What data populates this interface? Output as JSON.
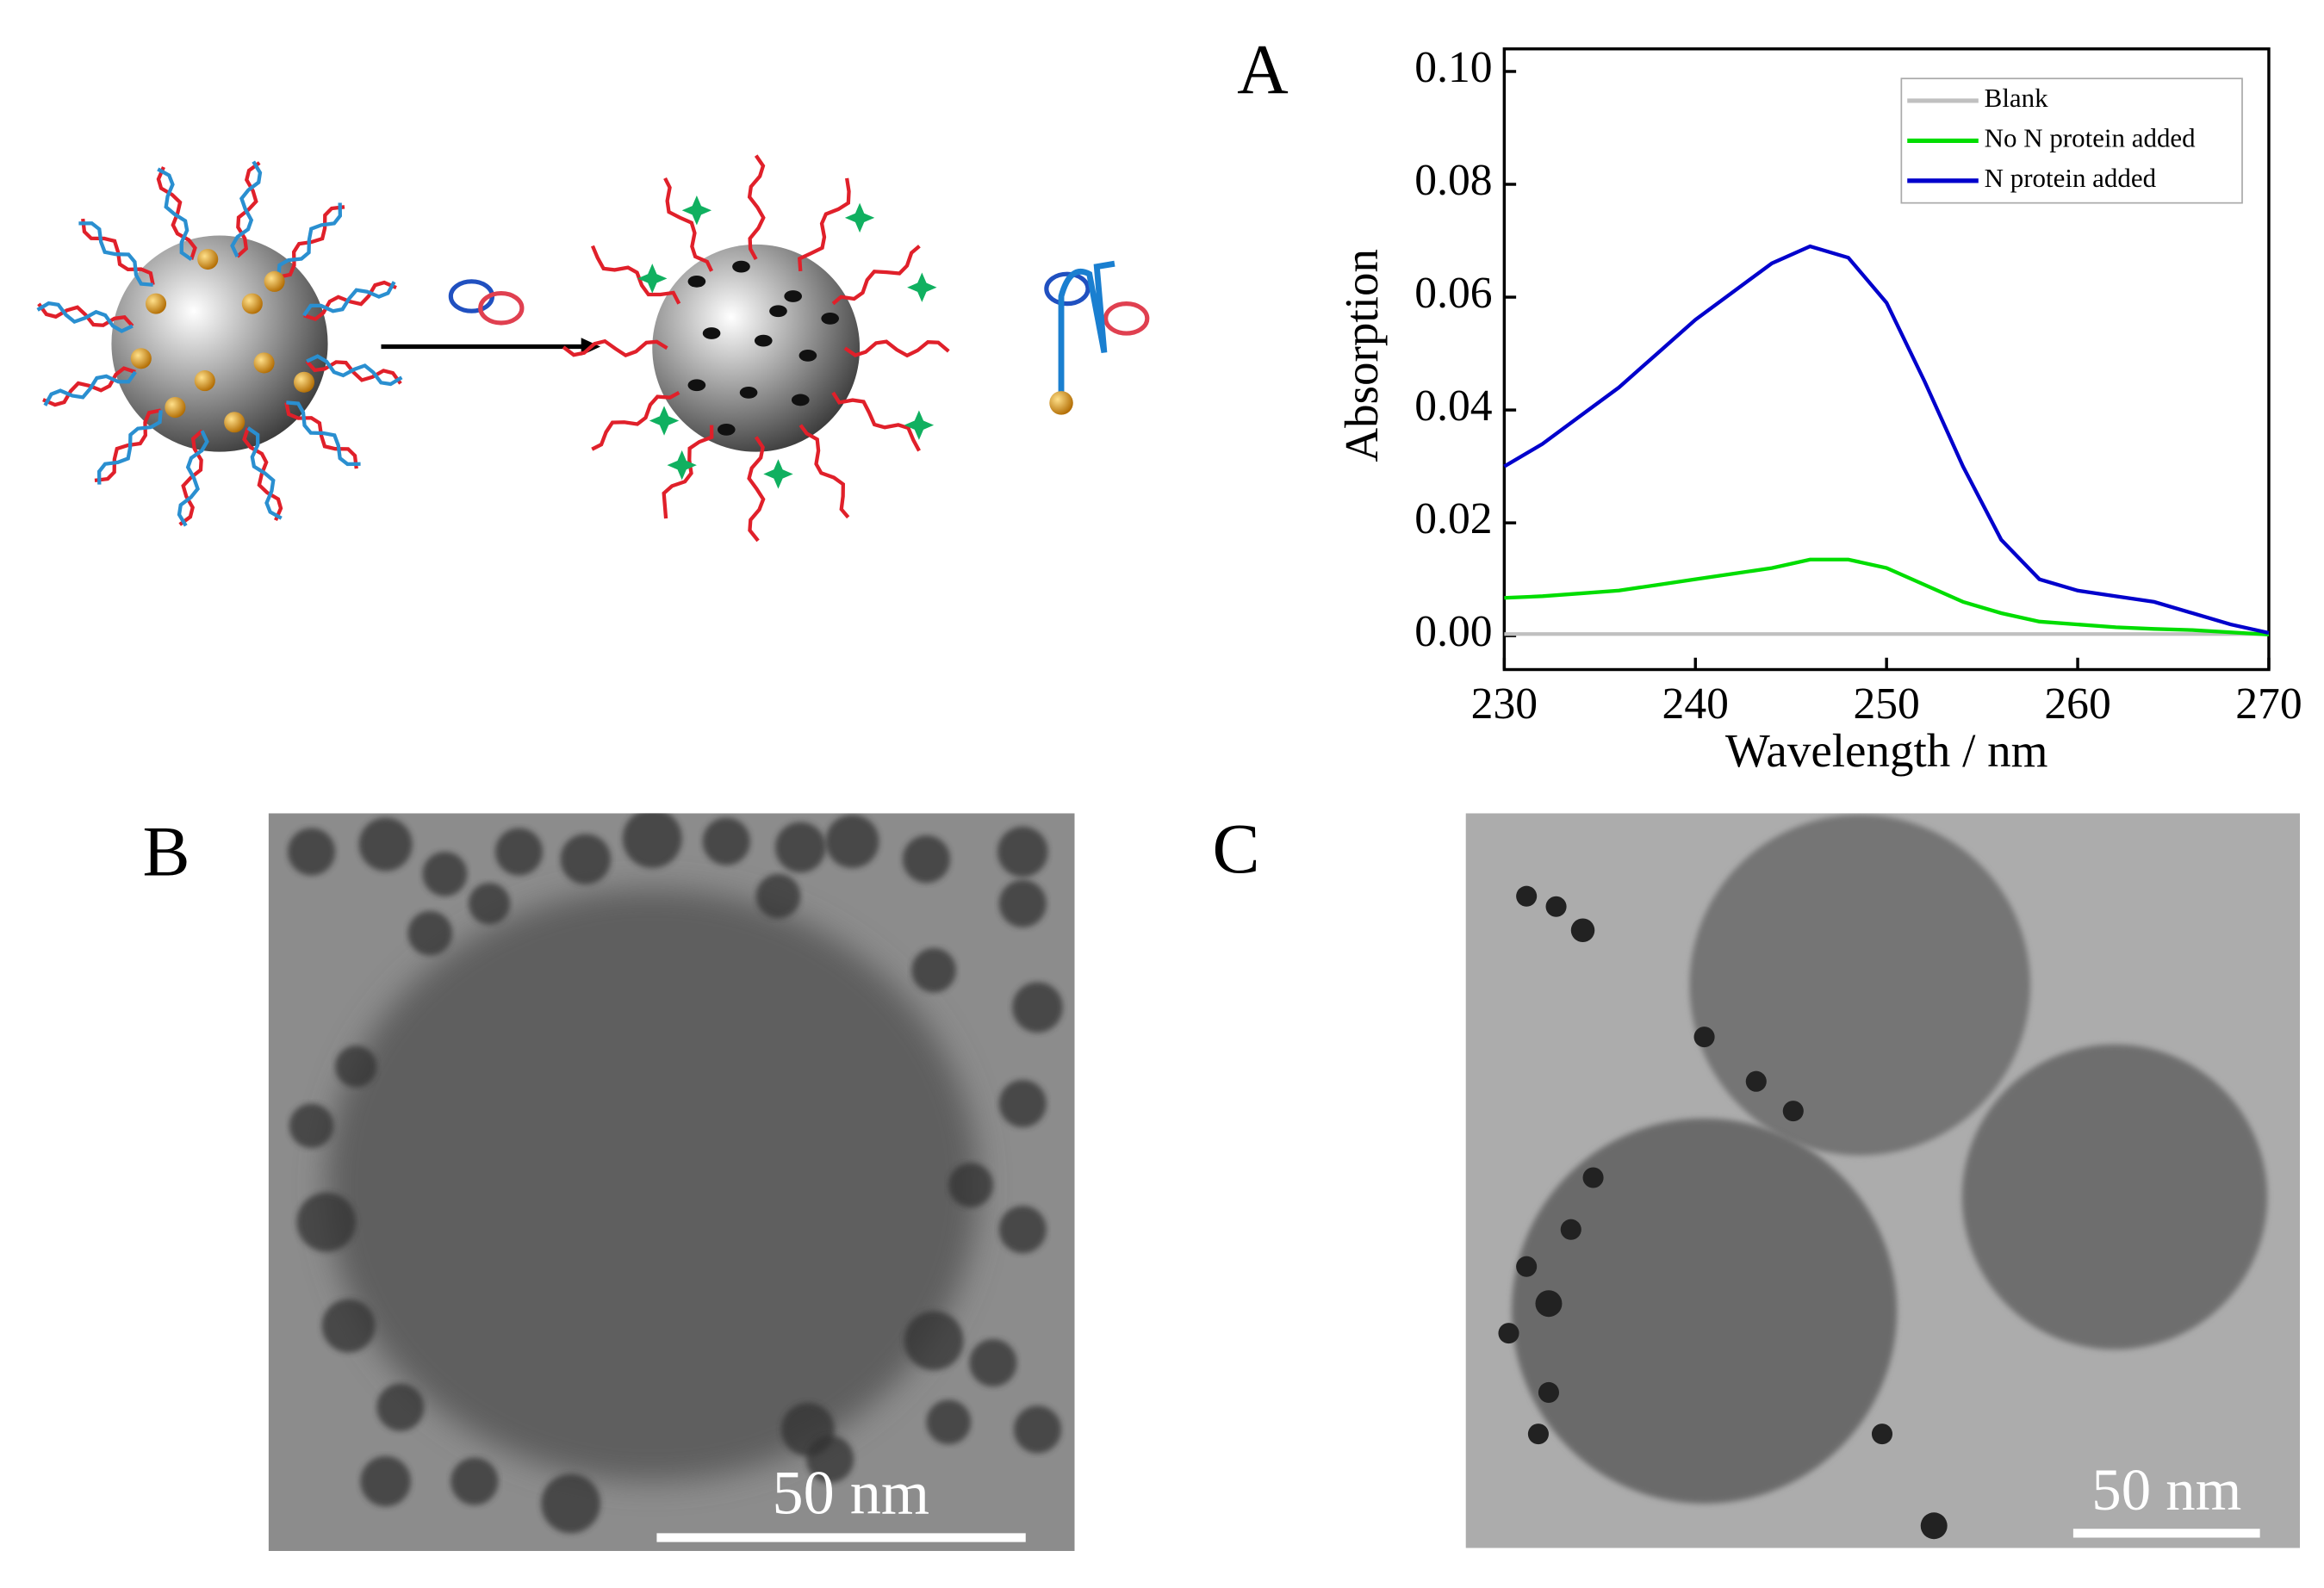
{
  "figure": {
    "panel_labels": [
      "A",
      "B",
      "C"
    ],
    "scale_bars": [
      "50 nm",
      "50 nm"
    ]
  },
  "chart_data": {
    "type": "line",
    "x_label": "Wavelength / nm",
    "y_label": "Absorption",
    "x": [
      230,
      232,
      234,
      236,
      238,
      240,
      242,
      244,
      246,
      248,
      250,
      252,
      254,
      256,
      258,
      260,
      262,
      264,
      266,
      268,
      270
    ],
    "series": [
      {
        "name": "Blank",
        "color": "#c0c0c0",
        "values": [
          0.0003,
          0.0003,
          0.0003,
          0.0003,
          0.0003,
          0.0003,
          0.0003,
          0.0003,
          0.0003,
          0.0003,
          0.0003,
          0.0003,
          0.0003,
          0.0003,
          0.0003,
          0.0003,
          0.0003,
          0.0003,
          0.0003,
          0.0003,
          0.0003
        ]
      },
      {
        "name": "No N protein added",
        "color": "#00dd00",
        "values": [
          0.0067,
          0.007,
          0.0075,
          0.008,
          0.009,
          0.01,
          0.011,
          0.012,
          0.0135,
          0.0135,
          0.012,
          0.009,
          0.006,
          0.004,
          0.0025,
          0.002,
          0.0015,
          0.0012,
          0.001,
          0.0006,
          0.0002
        ]
      },
      {
        "name": "N protein added",
        "color": "#0000cc",
        "values": [
          0.03,
          0.034,
          0.039,
          0.044,
          0.05,
          0.056,
          0.061,
          0.066,
          0.069,
          0.067,
          0.059,
          0.045,
          0.03,
          0.017,
          0.01,
          0.008,
          0.007,
          0.006,
          0.004,
          0.002,
          0.0005
        ]
      }
    ],
    "xlim": [
      230,
      270
    ],
    "xticks": [
      230,
      240,
      250,
      260,
      270
    ],
    "ylim": [
      -0.006,
      0.104
    ],
    "yticks": [
      {
        "value": 0,
        "label": "0.00"
      },
      {
        "value": 0.02,
        "label": "0.02"
      },
      {
        "value": 0.04,
        "label": "0.04"
      },
      {
        "value": 0.06,
        "label": "0.06"
      },
      {
        "value": 0.08,
        "label": "0.08"
      },
      {
        "value": 0.1,
        "label": "0.10"
      }
    ],
    "legend": "upper right"
  }
}
